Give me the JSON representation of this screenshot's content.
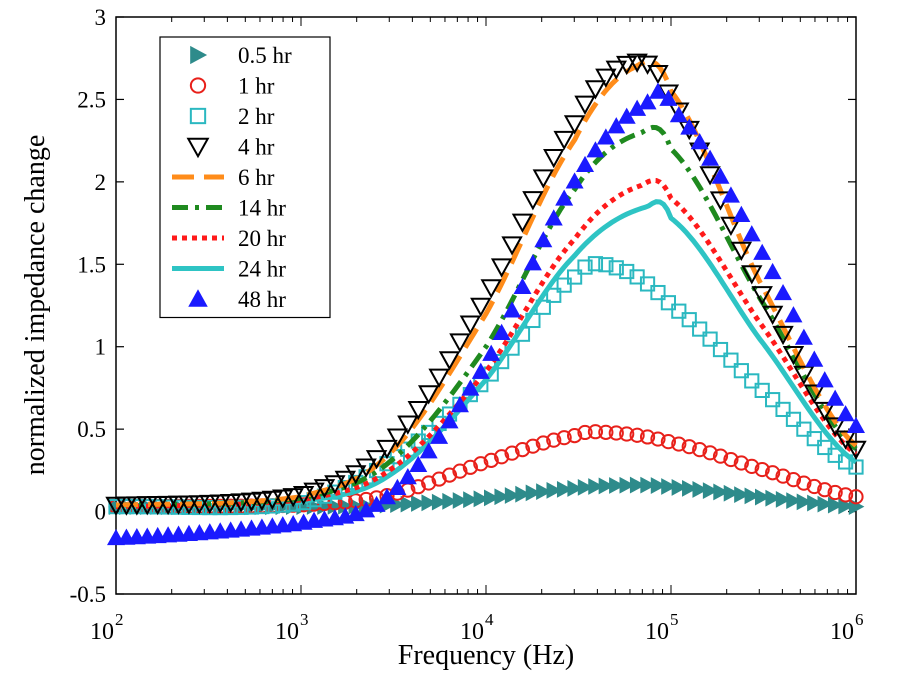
{
  "chart_data": {
    "type": "line",
    "xlabel": "Frequency (Hz)",
    "ylabel": "normalized impedance change",
    "xscale": "log",
    "xlim": [
      100,
      1000000
    ],
    "ylim": [
      -0.5,
      3
    ],
    "x_ticks": [
      {
        "base": "10",
        "exp": "2",
        "value": 100
      },
      {
        "base": "10",
        "exp": "3",
        "value": 1000
      },
      {
        "base": "10",
        "exp": "4",
        "value": 10000
      },
      {
        "base": "10",
        "exp": "5",
        "value": 100000
      },
      {
        "base": "10",
        "exp": "6",
        "value": 1000000
      }
    ],
    "y_ticks": [
      {
        "label": "-0.5",
        "value": -0.5
      },
      {
        "label": "0",
        "value": 0
      },
      {
        "label": "0.5",
        "value": 0.5
      },
      {
        "label": "1",
        "value": 1
      },
      {
        "label": "1.5",
        "value": 1.5
      },
      {
        "label": "2",
        "value": 2
      },
      {
        "label": "2.5",
        "value": 2.5
      },
      {
        "label": "3",
        "value": 3
      }
    ],
    "grid": false,
    "legend_position": "top-left",
    "series": [
      {
        "name": "0.5 hr",
        "color": "#2e8b8b",
        "marker": "triangle-right",
        "points": [
          [
            100,
            0.03
          ],
          [
            1000,
            0.03
          ],
          [
            3000,
            0.04
          ],
          [
            10000,
            0.08
          ],
          [
            30000,
            0.14
          ],
          [
            60000,
            0.16
          ],
          [
            100000,
            0.15
          ],
          [
            300000,
            0.09
          ],
          [
            1000000,
            0.03
          ]
        ]
      },
      {
        "name": "1 hr",
        "color": "#e8201a",
        "marker": "circle",
        "points": [
          [
            100,
            0.03
          ],
          [
            1000,
            0.04
          ],
          [
            3000,
            0.1
          ],
          [
            10000,
            0.3
          ],
          [
            30000,
            0.46
          ],
          [
            45000,
            0.48
          ],
          [
            100000,
            0.42
          ],
          [
            300000,
            0.26
          ],
          [
            1000000,
            0.09
          ]
        ]
      },
      {
        "name": "2 hr",
        "color": "#2ab8c0",
        "marker": "square",
        "points": [
          [
            100,
            0.03
          ],
          [
            1000,
            0.05
          ],
          [
            3000,
            0.3
          ],
          [
            10000,
            0.8
          ],
          [
            30000,
            1.42
          ],
          [
            50000,
            1.48
          ],
          [
            100000,
            1.25
          ],
          [
            300000,
            0.75
          ],
          [
            1000000,
            0.27
          ]
        ]
      },
      {
        "name": "4 hr",
        "color": "#000000",
        "marker": "triangle-down",
        "points": [
          [
            100,
            0.04
          ],
          [
            1000,
            0.1
          ],
          [
            3000,
            0.4
          ],
          [
            10000,
            1.3
          ],
          [
            30000,
            2.35
          ],
          [
            60000,
            2.72
          ],
          [
            100000,
            2.5
          ],
          [
            300000,
            1.35
          ],
          [
            1000000,
            0.38
          ]
        ]
      },
      {
        "name": "6 hr",
        "color": "#ff8c1a",
        "line": "dash",
        "points": [
          [
            100,
            0.04
          ],
          [
            1000,
            0.09
          ],
          [
            3000,
            0.35
          ],
          [
            10000,
            1.2
          ],
          [
            30000,
            2.25
          ],
          [
            65000,
            2.7
          ],
          [
            100000,
            2.55
          ],
          [
            300000,
            1.4
          ],
          [
            1000000,
            0.4
          ]
        ]
      },
      {
        "name": "14 hr",
        "color": "#1f8a1f",
        "line": "dashdot",
        "points": [
          [
            100,
            0.04
          ],
          [
            1000,
            0.08
          ],
          [
            3000,
            0.3
          ],
          [
            10000,
            1.0
          ],
          [
            30000,
            1.95
          ],
          [
            70000,
            2.3
          ],
          [
            100000,
            2.2
          ],
          [
            300000,
            1.3
          ],
          [
            1000000,
            0.38
          ]
        ]
      },
      {
        "name": "20 hr",
        "color": "#ff1a1a",
        "line": "dot",
        "points": [
          [
            100,
            0.03
          ],
          [
            1000,
            0.07
          ],
          [
            3000,
            0.25
          ],
          [
            10000,
            0.85
          ],
          [
            30000,
            1.65
          ],
          [
            70000,
            1.98
          ],
          [
            100000,
            1.9
          ],
          [
            300000,
            1.15
          ],
          [
            1000000,
            0.35
          ]
        ]
      },
      {
        "name": "24 hr",
        "color": "#2ec4c4",
        "line": "solid",
        "points": [
          [
            100,
            0.03
          ],
          [
            1000,
            0.06
          ],
          [
            3000,
            0.22
          ],
          [
            10000,
            0.8
          ],
          [
            30000,
            1.55
          ],
          [
            75000,
            1.85
          ],
          [
            100000,
            1.78
          ],
          [
            300000,
            1.05
          ],
          [
            1000000,
            0.3
          ]
        ]
      },
      {
        "name": "48 hr",
        "color": "#1a1aff",
        "marker": "triangle-up",
        "points": [
          [
            100,
            -0.16
          ],
          [
            1000,
            -0.07
          ],
          [
            3000,
            0.1
          ],
          [
            10000,
            0.9
          ],
          [
            30000,
            2.0
          ],
          [
            80000,
            2.5
          ],
          [
            100000,
            2.45
          ],
          [
            300000,
            1.6
          ],
          [
            1000000,
            0.52
          ]
        ]
      }
    ]
  }
}
